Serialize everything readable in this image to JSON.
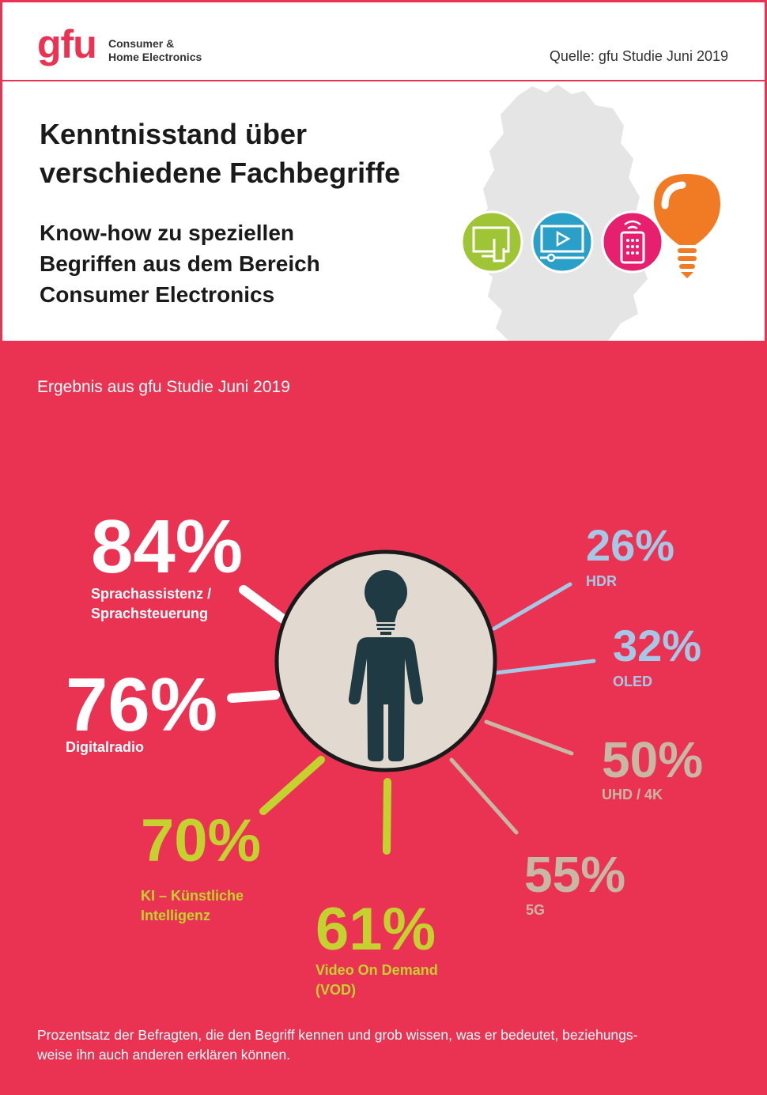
{
  "header": {
    "logo_text": "gfu",
    "logo_tagline_1": "Consumer &",
    "logo_tagline_2": "Home Electronics",
    "source": "Quelle: gfu Studie Juni 2019"
  },
  "intro": {
    "title_line1": "Kenntnisstand über",
    "title_line2": "verschiedene Fachbegriffe",
    "subtitle_line1": "Know-how zu speziellen",
    "subtitle_line2": "Begriffen aus dem Bereich",
    "subtitle_line3": "Consumer Electronics",
    "icons": [
      "touchscreen-icon",
      "video-player-icon",
      "remote-control-icon",
      "lightbulb-icon"
    ]
  },
  "main": {
    "result_label": "Ergebnis aus gfu Studie Juni 2019",
    "footnote_line1": "Prozentsatz der Befragten, die den Begriff kennen und grob wissen, was er bedeutet, beziehungs-",
    "footnote_line2": "weise ihn auch anderen erklären können."
  },
  "colors": {
    "brand": "#ea3352",
    "white": "#ffffff",
    "green": "#c5d12f",
    "light_blue": "#a6c8e6",
    "beige": "#c9b7a6",
    "circle_fill": "#e2dad0",
    "figure": "#203a43",
    "icon_green": "#9fc436",
    "icon_blue": "#2aa0c9",
    "icon_pink": "#e6206e",
    "icon_orange": "#f07b24"
  },
  "chart_data": {
    "type": "radial",
    "categories": [
      "Sprachassistenz / Sprachsteuerung",
      "Digitalradio",
      "KI – Künstliche Intelligenz",
      "Video On Demand (VOD)",
      "5G",
      "UHD / 4K",
      "OLED",
      "HDR"
    ],
    "values": [
      84,
      76,
      70,
      61,
      55,
      50,
      32,
      26
    ],
    "unit": "%",
    "value_labels": [
      "84%",
      "76%",
      "70%",
      "61%",
      "55%",
      "50%",
      "32%",
      "26%"
    ],
    "label_lines": [
      [
        "Sprachassistenz /",
        "Sprachsteuerung"
      ],
      [
        "Digitalradio"
      ],
      [
        "KI – Künstliche",
        "Intelligenz"
      ],
      [
        "Video On Demand",
        "(VOD)"
      ],
      [
        "5G"
      ],
      [
        "UHD / 4K"
      ],
      [
        "OLED"
      ],
      [
        "HDR"
      ]
    ],
    "colors": [
      "#ffffff",
      "#ffffff",
      "#c5d12f",
      "#c5d12f",
      "#c9b7a6",
      "#c9b7a6",
      "#a6c8e6",
      "#a6c8e6"
    ]
  }
}
